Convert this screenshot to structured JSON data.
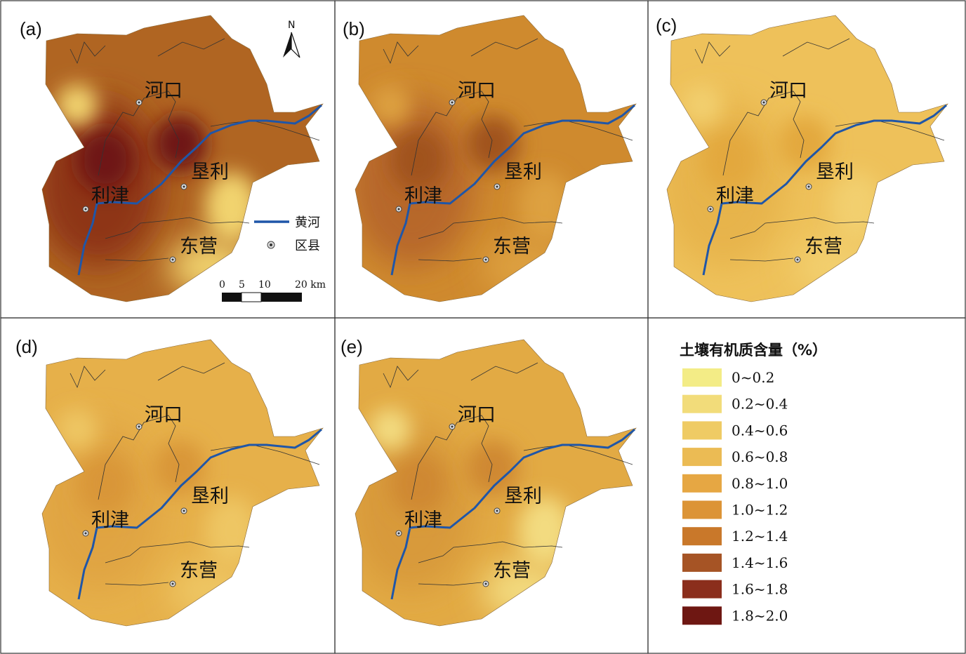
{
  "panels": [
    {
      "id": "a",
      "label": "(a)",
      "fill": "#b06522",
      "core": "#6e1712",
      "mid": "#8e3518",
      "light": "#f1d36e"
    },
    {
      "id": "b",
      "label": "(b)",
      "fill": "#cf8a2e",
      "core": "#a0521f",
      "mid": "#b7682a",
      "light": "#dda040"
    },
    {
      "id": "c",
      "label": "(c)",
      "fill": "#eec15a",
      "core": "#e3a83e",
      "mid": "#e7b44c",
      "light": "#f2cf6e"
    },
    {
      "id": "d",
      "label": "(d)",
      "fill": "#e6b04a",
      "core": "#d99638",
      "mid": "#e0a443",
      "light": "#eec663"
    },
    {
      "id": "e",
      "label": "(e)",
      "fill": "#e2aa44",
      "core": "#cf8830",
      "mid": "#d89a3a",
      "light": "#f3db80"
    }
  ],
  "places": {
    "hekou": "河口",
    "kenli": "垦利",
    "lijin": "利津",
    "dongying": "东营"
  },
  "map_elements": {
    "north_label": "N",
    "river_label": "黄河",
    "county_label": "区县",
    "scale_ticks": [
      "0",
      "5",
      "10",
      "20 km"
    ]
  },
  "legend": {
    "title": "土壤有机质含量（%）",
    "classes": [
      {
        "label": "0~0.2",
        "color": "#f3ec86"
      },
      {
        "label": "0.2~0.4",
        "color": "#f2dc7a"
      },
      {
        "label": "0.4~0.6",
        "color": "#efcb64"
      },
      {
        "label": "0.6~0.8",
        "color": "#ebbb54"
      },
      {
        "label": "0.8~1.0",
        "color": "#e6a743"
      },
      {
        "label": "1.0~1.2",
        "color": "#dc9436"
      },
      {
        "label": "1.2~1.4",
        "color": "#c9782a"
      },
      {
        "label": "1.4~1.6",
        "color": "#a65425"
      },
      {
        "label": "1.6~1.8",
        "color": "#8b2e1c"
      },
      {
        "label": "1.8~2.0",
        "color": "#6e1712"
      }
    ]
  },
  "colors": {
    "river": "#1f56a8",
    "border": "#333333"
  }
}
